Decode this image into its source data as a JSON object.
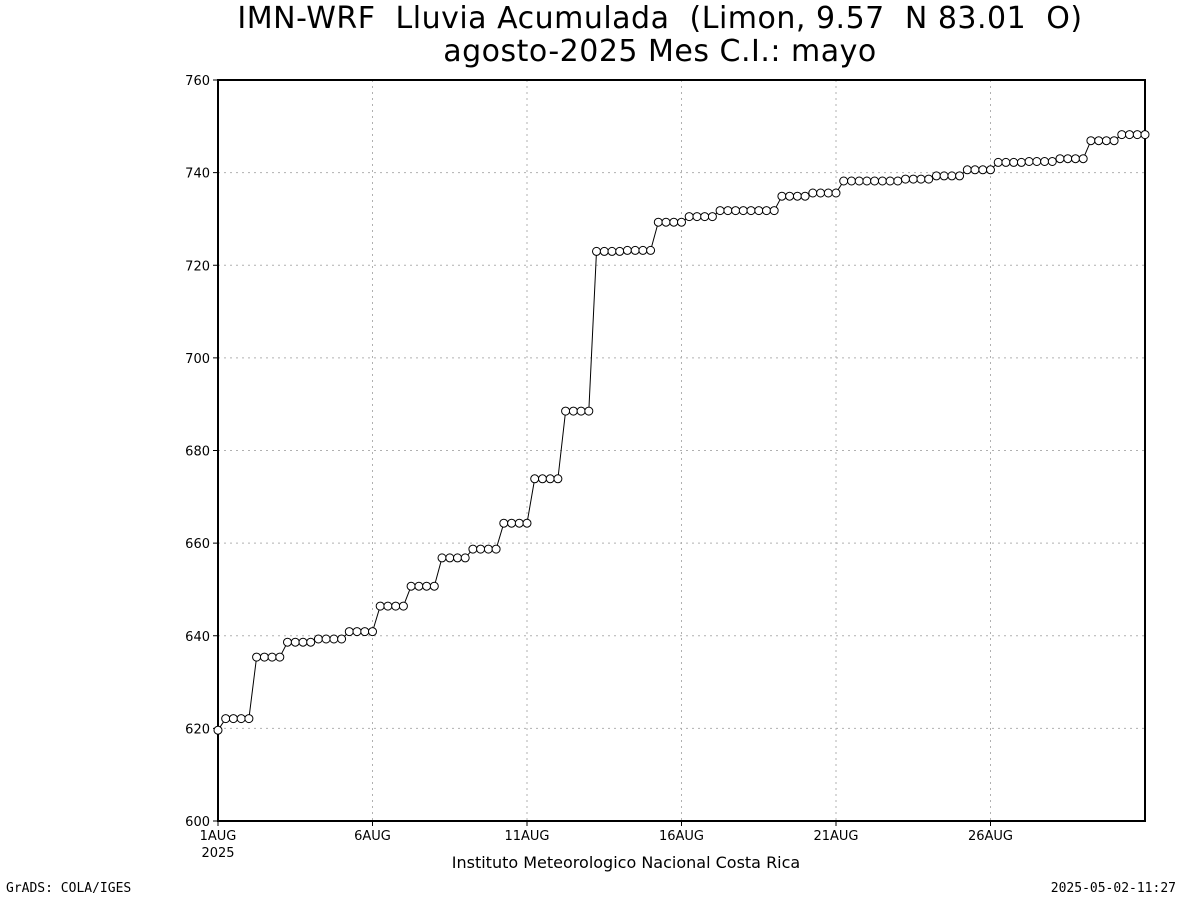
{
  "chart_data": {
    "type": "line",
    "title": "IMN-WRF  Lluvia Acumulada  (Limon, 9.57  N 83.01  O)",
    "subtitle": "agosto-2025 Mes C.I.: mayo",
    "xlabel": "Instituto Meteorologico Nacional Costa Rica",
    "ylabel": "",
    "ylim": [
      600,
      760
    ],
    "yticks": [
      600,
      620,
      640,
      660,
      680,
      700,
      720,
      740,
      760
    ],
    "xlim": [
      1,
      31
    ],
    "xticks": [
      {
        "day": 1,
        "label": "1AUG",
        "sublabel": "2025"
      },
      {
        "day": 6,
        "label": "6AUG",
        "sublabel": ""
      },
      {
        "day": 11,
        "label": "11AUG",
        "sublabel": ""
      },
      {
        "day": 16,
        "label": "16AUG",
        "sublabel": ""
      },
      {
        "day": 21,
        "label": "21AUG",
        "sublabel": ""
      },
      {
        "day": 26,
        "label": "26AUG",
        "sublabel": ""
      }
    ],
    "grid": true,
    "step_days": 0.25,
    "series": [
      {
        "start_day": 1,
        "values": [
          619.6,
          622.1,
          622.1,
          622.1,
          622.1,
          635.4,
          635.4,
          635.4,
          635.4,
          638.6,
          638.6,
          638.6,
          638.6,
          639.3,
          639.3,
          639.3,
          639.3,
          640.9,
          640.9,
          640.9,
          640.9,
          646.4,
          646.4,
          646.4,
          646.4,
          650.7,
          650.7,
          650.7,
          650.7,
          656.8,
          656.8,
          656.8,
          656.8,
          658.7,
          658.7,
          658.7,
          658.7,
          664.3,
          664.3,
          664.3,
          664.3,
          673.9,
          673.9,
          673.9,
          673.9,
          688.5,
          688.5,
          688.5,
          688.5,
          723.0,
          723.0,
          723.0,
          723.0,
          723.2,
          723.2,
          723.2,
          723.2,
          729.3,
          729.3,
          729.3,
          729.3,
          730.5,
          730.5,
          730.5,
          730.5,
          731.8,
          731.8,
          731.8,
          731.8,
          731.8,
          731.8,
          731.8,
          731.8,
          734.9,
          734.9,
          734.9,
          734.9,
          735.6,
          735.6,
          735.6,
          735.6,
          738.2,
          738.2,
          738.2,
          738.2,
          738.2,
          738.2,
          738.2,
          738.2,
          738.6,
          738.6,
          738.6,
          738.6,
          739.3,
          739.3,
          739.3,
          739.3,
          740.6,
          740.6,
          740.6,
          740.6,
          742.2,
          742.2,
          742.2,
          742.2,
          742.4,
          742.4,
          742.4,
          742.4,
          743.0,
          743.0,
          743.0,
          743.0,
          746.9,
          746.9,
          746.9,
          746.9,
          748.2,
          748.2,
          748.2,
          748.2
        ]
      }
    ]
  },
  "footer": {
    "credit": "GrADS: COLA/IGES",
    "timestamp": "2025-05-02-11:27"
  }
}
